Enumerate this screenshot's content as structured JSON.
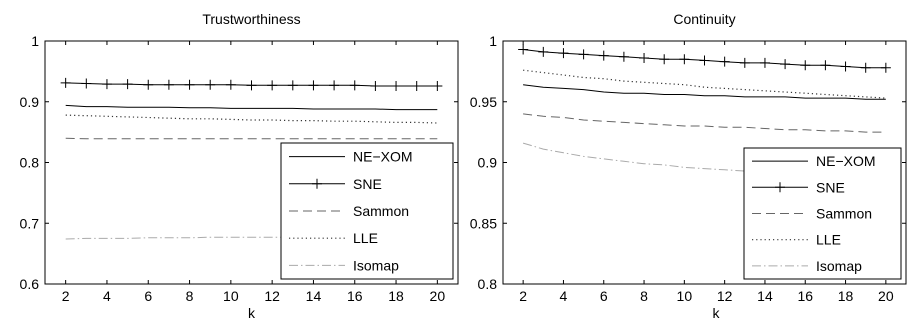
{
  "chart_data": [
    {
      "type": "line",
      "title": "Trustworthiness",
      "xlabel": "k",
      "ylabel": "",
      "xlim": [
        1,
        21
      ],
      "ylim": [
        0.6,
        1.0
      ],
      "x": [
        2,
        3,
        4,
        5,
        6,
        7,
        8,
        9,
        10,
        11,
        12,
        13,
        14,
        15,
        16,
        17,
        18,
        19,
        20
      ],
      "xticks": [
        2,
        4,
        6,
        8,
        10,
        12,
        14,
        16,
        18,
        20
      ],
      "yticks": [
        0.6,
        0.7,
        0.8,
        0.9,
        1.0
      ],
      "ytick_labels": [
        "0.6",
        "0.7",
        "0.8",
        "0.9",
        "1"
      ],
      "grid": false,
      "legend": "bottom-right",
      "series": [
        {
          "name": "NE−XOM",
          "style": "solid",
          "values": [
            0.894,
            0.892,
            0.892,
            0.891,
            0.891,
            0.891,
            0.89,
            0.89,
            0.889,
            0.889,
            0.889,
            0.889,
            0.888,
            0.888,
            0.888,
            0.888,
            0.887,
            0.887,
            0.887
          ]
        },
        {
          "name": "SNE",
          "style": "plus",
          "values": [
            0.931,
            0.93,
            0.929,
            0.929,
            0.928,
            0.928,
            0.928,
            0.928,
            0.928,
            0.927,
            0.927,
            0.927,
            0.927,
            0.927,
            0.927,
            0.926,
            0.926,
            0.926,
            0.926
          ]
        },
        {
          "name": "Sammon",
          "style": "dashed",
          "values": [
            0.84,
            0.839,
            0.839,
            0.839,
            0.839,
            0.839,
            0.839,
            0.839,
            0.839,
            0.839,
            0.839,
            0.839,
            0.839,
            0.839,
            0.839,
            0.839,
            0.839,
            0.839,
            0.839
          ]
        },
        {
          "name": "LLE",
          "style": "dotted",
          "values": [
            0.878,
            0.877,
            0.876,
            0.875,
            0.874,
            0.873,
            0.872,
            0.872,
            0.871,
            0.87,
            0.87,
            0.869,
            0.869,
            0.868,
            0.868,
            0.867,
            0.866,
            0.866,
            0.865
          ]
        },
        {
          "name": "Isomap",
          "style": "dashdot",
          "values": [
            0.674,
            0.675,
            0.675,
            0.675,
            0.676,
            0.676,
            0.676,
            0.677,
            0.677,
            0.677,
            0.677,
            0.677,
            0.678,
            0.678,
            0.678,
            0.678,
            0.679,
            0.679,
            0.679
          ]
        }
      ]
    },
    {
      "type": "line",
      "title": "Continuity",
      "xlabel": "k",
      "ylabel": "",
      "xlim": [
        1,
        21
      ],
      "ylim": [
        0.8,
        1.0
      ],
      "x": [
        2,
        3,
        4,
        5,
        6,
        7,
        8,
        9,
        10,
        11,
        12,
        13,
        14,
        15,
        16,
        17,
        18,
        19,
        20
      ],
      "xticks": [
        2,
        4,
        6,
        8,
        10,
        12,
        14,
        16,
        18,
        20
      ],
      "yticks": [
        0.8,
        0.85,
        0.9,
        0.95,
        1.0
      ],
      "ytick_labels": [
        "0.8",
        "0.85",
        "0.9",
        "0.95",
        "1"
      ],
      "grid": false,
      "legend": "bottom-right",
      "series": [
        {
          "name": "NE−XOM",
          "style": "solid",
          "values": [
            0.964,
            0.962,
            0.961,
            0.96,
            0.958,
            0.957,
            0.957,
            0.956,
            0.956,
            0.955,
            0.955,
            0.954,
            0.954,
            0.954,
            0.953,
            0.953,
            0.953,
            0.952,
            0.952
          ]
        },
        {
          "name": "SNE",
          "style": "plus",
          "values": [
            0.993,
            0.991,
            0.99,
            0.989,
            0.988,
            0.987,
            0.986,
            0.985,
            0.985,
            0.984,
            0.983,
            0.982,
            0.982,
            0.981,
            0.98,
            0.98,
            0.979,
            0.978,
            0.978
          ]
        },
        {
          "name": "Sammon",
          "style": "dashed",
          "values": [
            0.94,
            0.938,
            0.937,
            0.935,
            0.934,
            0.933,
            0.932,
            0.931,
            0.93,
            0.93,
            0.929,
            0.929,
            0.928,
            0.927,
            0.927,
            0.926,
            0.926,
            0.925,
            0.925
          ]
        },
        {
          "name": "LLE",
          "style": "dotted",
          "values": [
            0.976,
            0.974,
            0.972,
            0.97,
            0.969,
            0.967,
            0.966,
            0.965,
            0.964,
            0.962,
            0.961,
            0.96,
            0.959,
            0.958,
            0.957,
            0.956,
            0.955,
            0.954,
            0.953
          ]
        },
        {
          "name": "Isomap",
          "style": "dashdot",
          "values": [
            0.916,
            0.911,
            0.908,
            0.905,
            0.903,
            0.901,
            0.899,
            0.898,
            0.896,
            0.895,
            0.894,
            0.893,
            0.892,
            0.891,
            0.891,
            0.89,
            0.889,
            0.889,
            0.888
          ]
        }
      ]
    }
  ],
  "colors": {
    "axis": "#000000",
    "solid": "#000000",
    "plus": "#000000",
    "dashed": "#666666",
    "dotted": "#333333",
    "dashdot": "#aaaaaa"
  }
}
